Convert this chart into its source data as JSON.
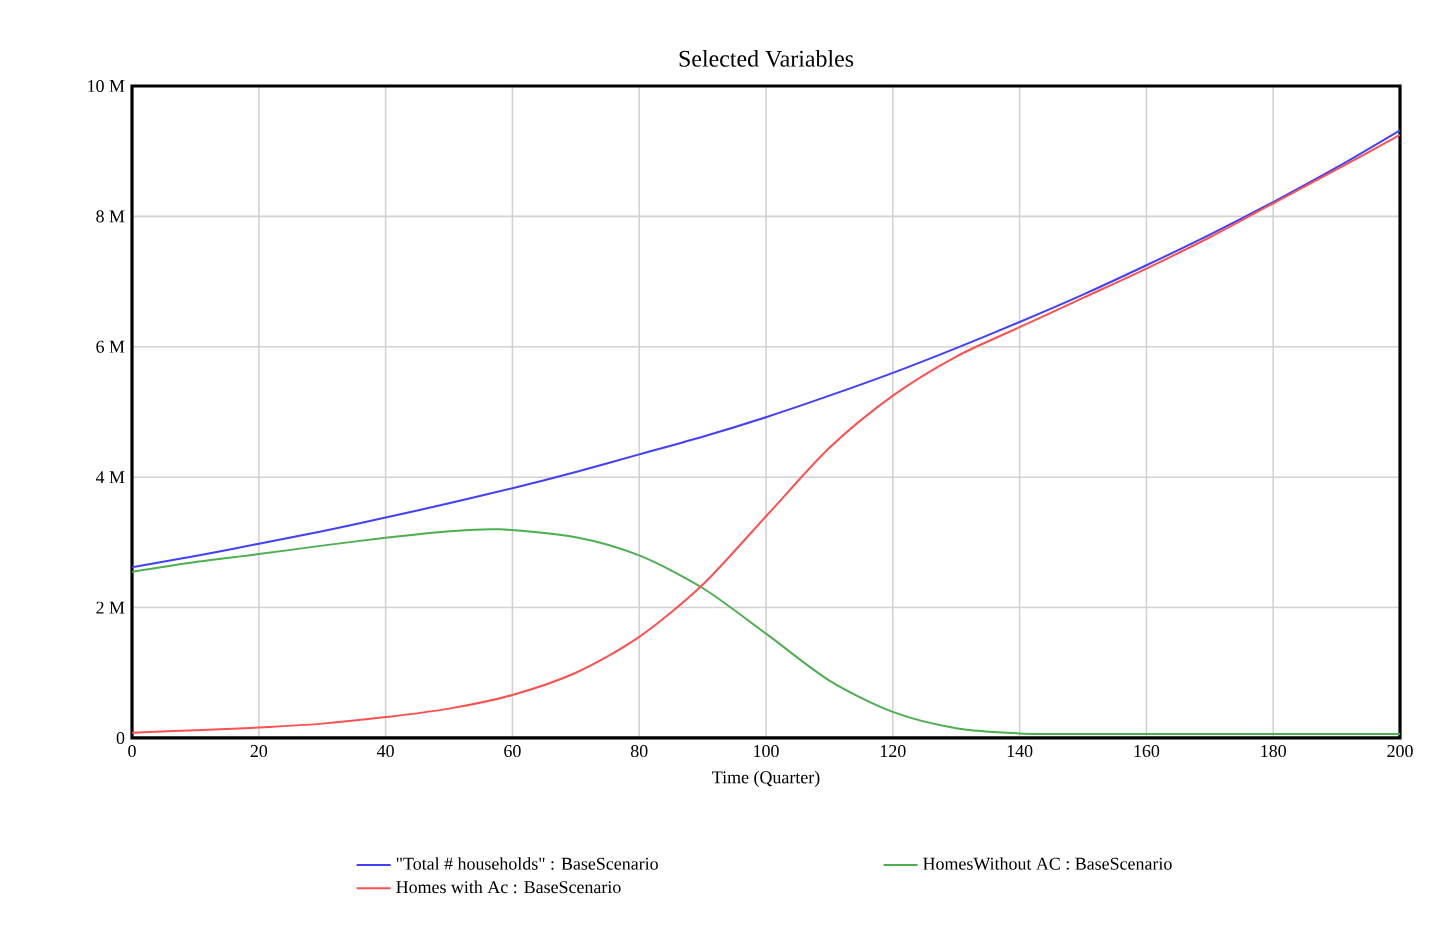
{
  "chart_data": {
    "type": "line",
    "title": "Selected Variables",
    "xlabel": "Time (Quarter)",
    "xlim": [
      0,
      200
    ],
    "xticks": [
      0,
      20,
      40,
      60,
      80,
      100,
      120,
      140,
      160,
      180,
      200
    ],
    "ylim": [
      0,
      10000000
    ],
    "yticks": [
      {
        "value": 0,
        "label": "0"
      },
      {
        "value": 2000000,
        "label": "2 M"
      },
      {
        "value": 4000000,
        "label": "4 M"
      },
      {
        "value": 6000000,
        "label": "6 M"
      },
      {
        "value": 8000000,
        "label": "8 M"
      },
      {
        "value": 10000000,
        "label": "10 M"
      }
    ],
    "grid": true,
    "legend": "bottom",
    "line_style": "solid",
    "series": [
      {
        "name": "\"Total # households\" : BaseScenario",
        "color": "#4040ff",
        "x": [
          0,
          10,
          20,
          30,
          40,
          50,
          60,
          70,
          80,
          90,
          100,
          110,
          120,
          130,
          140,
          150,
          160,
          170,
          180,
          190,
          200
        ],
        "values": [
          2620000,
          2790000,
          2980000,
          3170000,
          3380000,
          3600000,
          3830000,
          4080000,
          4350000,
          4620000,
          4920000,
          5250000,
          5600000,
          5980000,
          6380000,
          6800000,
          7250000,
          7720000,
          8220000,
          8750000,
          9320000
        ]
      },
      {
        "name": "HomesWithout AC : BaseScenario",
        "color": "#4caf50",
        "x": [
          0,
          10,
          20,
          30,
          40,
          50,
          58,
          70,
          80,
          90,
          100,
          110,
          120,
          130,
          140,
          150,
          160,
          170,
          180,
          190,
          200
        ],
        "values": [
          2550000,
          2700000,
          2820000,
          2950000,
          3070000,
          3170000,
          3200000,
          3080000,
          2800000,
          2300000,
          1600000,
          880000,
          400000,
          150000,
          70000,
          60000,
          60000,
          60000,
          60000,
          60000,
          60000
        ]
      },
      {
        "name": "Homes with Ac : BaseScenario",
        "color": "#ff5050",
        "x": [
          0,
          10,
          20,
          30,
          40,
          50,
          60,
          70,
          80,
          90,
          100,
          110,
          120,
          130,
          140,
          150,
          160,
          170,
          180,
          190,
          200
        ],
        "values": [
          80000,
          120000,
          160000,
          220000,
          320000,
          450000,
          660000,
          1000000,
          1550000,
          2350000,
          3400000,
          4450000,
          5250000,
          5850000,
          6300000,
          6750000,
          7200000,
          7680000,
          8200000,
          8720000,
          9250000
        ]
      }
    ]
  }
}
